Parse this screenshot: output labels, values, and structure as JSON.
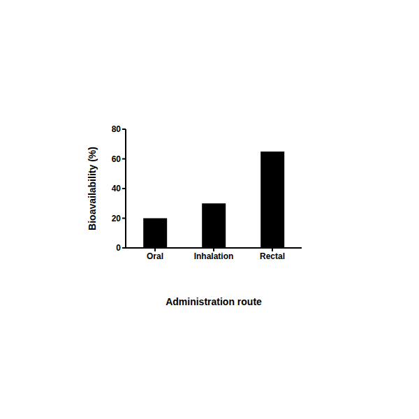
{
  "chart_data": {
    "type": "bar",
    "categories": [
      "Oral",
      "Inhalation",
      "Rectal"
    ],
    "values": [
      20,
      30,
      65
    ],
    "color": "#000000",
    "ylim": [
      0,
      80
    ],
    "yticks": [
      0,
      20,
      40,
      60,
      80
    ],
    "x_label": "Administration route",
    "y_label": "Bioavailability (%)",
    "grid": false
  }
}
